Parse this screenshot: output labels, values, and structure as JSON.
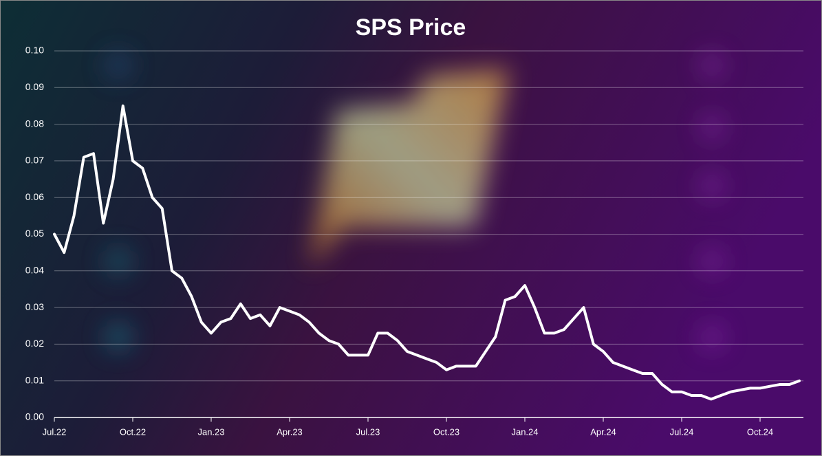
{
  "chart_data": {
    "type": "line",
    "title": "SPS Price",
    "categories": [
      "Jul.22",
      null,
      null,
      null,
      null,
      null,
      null,
      null,
      "Oct.22",
      null,
      null,
      null,
      null,
      null,
      null,
      null,
      "Jan.23",
      null,
      null,
      null,
      null,
      null,
      null,
      null,
      "Apr.23",
      null,
      null,
      null,
      null,
      null,
      null,
      null,
      "Jul.23",
      null,
      null,
      null,
      null,
      null,
      null,
      null,
      "Oct.23",
      null,
      null,
      null,
      null,
      null,
      null,
      null,
      "Jan.24",
      null,
      null,
      null,
      null,
      null,
      null,
      null,
      "Apr.24",
      null,
      null,
      null,
      null,
      null,
      null,
      null,
      "Jul.24",
      null,
      null,
      null,
      null,
      null,
      null,
      null,
      "Oct.24",
      null,
      null,
      null,
      null
    ],
    "series": [
      {
        "color": "#ffffff",
        "values": [
          0.05,
          0.045,
          0.055,
          0.071,
          0.072,
          0.053,
          0.065,
          0.085,
          0.07,
          0.068,
          0.06,
          0.057,
          0.04,
          0.038,
          0.033,
          0.026,
          0.023,
          0.026,
          0.027,
          0.031,
          0.027,
          0.028,
          0.025,
          0.03,
          0.029,
          0.028,
          0.026,
          0.023,
          0.021,
          0.02,
          0.017,
          0.017,
          0.017,
          0.023,
          0.023,
          0.021,
          0.018,
          0.017,
          0.016,
          0.015,
          0.013,
          0.014,
          0.014,
          0.014,
          0.018,
          0.022,
          0.032,
          0.033,
          0.036,
          0.03,
          0.023,
          0.023,
          0.024,
          0.027,
          0.03,
          0.02,
          0.018,
          0.015,
          0.014,
          0.013,
          0.012,
          0.012,
          0.009,
          0.007,
          0.007,
          0.006,
          0.006,
          0.005,
          0.006,
          0.007,
          0.0075,
          0.008,
          0.008,
          0.0085,
          0.009,
          0.009,
          0.01
        ]
      }
    ],
    "ylim": [
      0,
      0.1
    ],
    "yticks": [
      {
        "value": 0,
        "label": "0.00"
      },
      0.01,
      0.02,
      0.03,
      0.04,
      0.05,
      0.06,
      0.07,
      0.08,
      0.09,
      {
        "value": 0.1,
        "label": "0.10"
      }
    ],
    "grid": true
  }
}
